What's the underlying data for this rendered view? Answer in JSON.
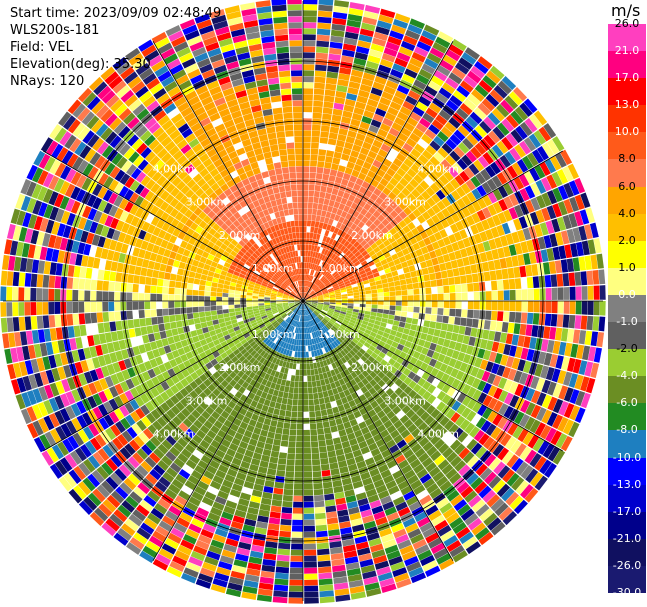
{
  "header": {
    "start_time": "Start time: 2023/09/09 02:48:49",
    "instrument": "WLS200s-181",
    "field": "Field: VEL",
    "elevation": "Elevation(deg): 35.30",
    "nrays": "NRays: 120"
  },
  "colorbar": {
    "unit": "m/s",
    "ticks": [
      "26.0",
      "21.0",
      "17.0",
      "13.0",
      "10.0",
      "8.0",
      "6.0",
      "4.0",
      "2.0",
      "1.0",
      "0.0",
      "-1.0",
      "-2.0",
      "-4.0",
      "-6.0",
      "-8.0",
      "-10.0",
      "-13.0",
      "-17.0",
      "-21.0",
      "-26.0",
      "-30.0"
    ],
    "colors": [
      "#ff3fbf",
      "#ff0080",
      "#ff0000",
      "#ff3300",
      "#ff5a1a",
      "#ff7a4d",
      "#ffa500",
      "#ffbf00",
      "#ffff00",
      "#ffff80",
      "#808080",
      "#606060",
      "#9acd32",
      "#6b8e23",
      "#228b22",
      "#1e7fc0",
      "#0000ff",
      "#0000cd",
      "#00008b",
      "#101060",
      "#1a1a70"
    ]
  },
  "chart_data": {
    "type": "ppi",
    "field": "VEL",
    "units": "m/s",
    "range_ring_labels_km": [
      "1.00km",
      "2.00km",
      "3.00km",
      "4.00km"
    ],
    "range_rings_km": [
      1,
      2,
      3,
      4
    ],
    "max_range_km": 5,
    "nrays": 120,
    "elevation_deg": 35.3,
    "gates_per_km": 20,
    "pattern": [
      {
        "sector": "north-west to north-east (near)",
        "velocity_ms": 8
      },
      {
        "sector": "north outer ring",
        "velocity_ms": 6
      },
      {
        "sector": "east / west",
        "velocity_ms": 2
      },
      {
        "sector": "south (near)",
        "velocity_ms": -10
      },
      {
        "sector": "south outer ring",
        "velocity_ms": -6
      },
      {
        "sector": "beyond ~4 km",
        "velocity_ms": "noise"
      }
    ]
  }
}
